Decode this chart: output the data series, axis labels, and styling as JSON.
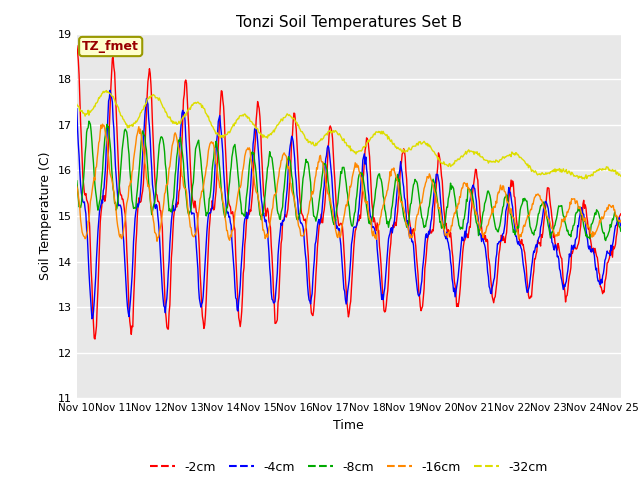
{
  "title": "Tonzi Soil Temperatures Set B",
  "xlabel": "Time",
  "ylabel": "Soil Temperature (C)",
  "ylim": [
    11.0,
    19.0
  ],
  "yticks": [
    11.0,
    12.0,
    13.0,
    14.0,
    15.0,
    16.0,
    17.0,
    18.0,
    19.0
  ],
  "line_colors": {
    "-2cm": "#ff0000",
    "-4cm": "#0000ff",
    "-8cm": "#00aa00",
    "-16cm": "#ff8800",
    "-32cm": "#dddd00"
  },
  "legend_label": "TZ_fmet",
  "background_color": "#e8e8e8",
  "num_days": 15,
  "start_day": 10
}
